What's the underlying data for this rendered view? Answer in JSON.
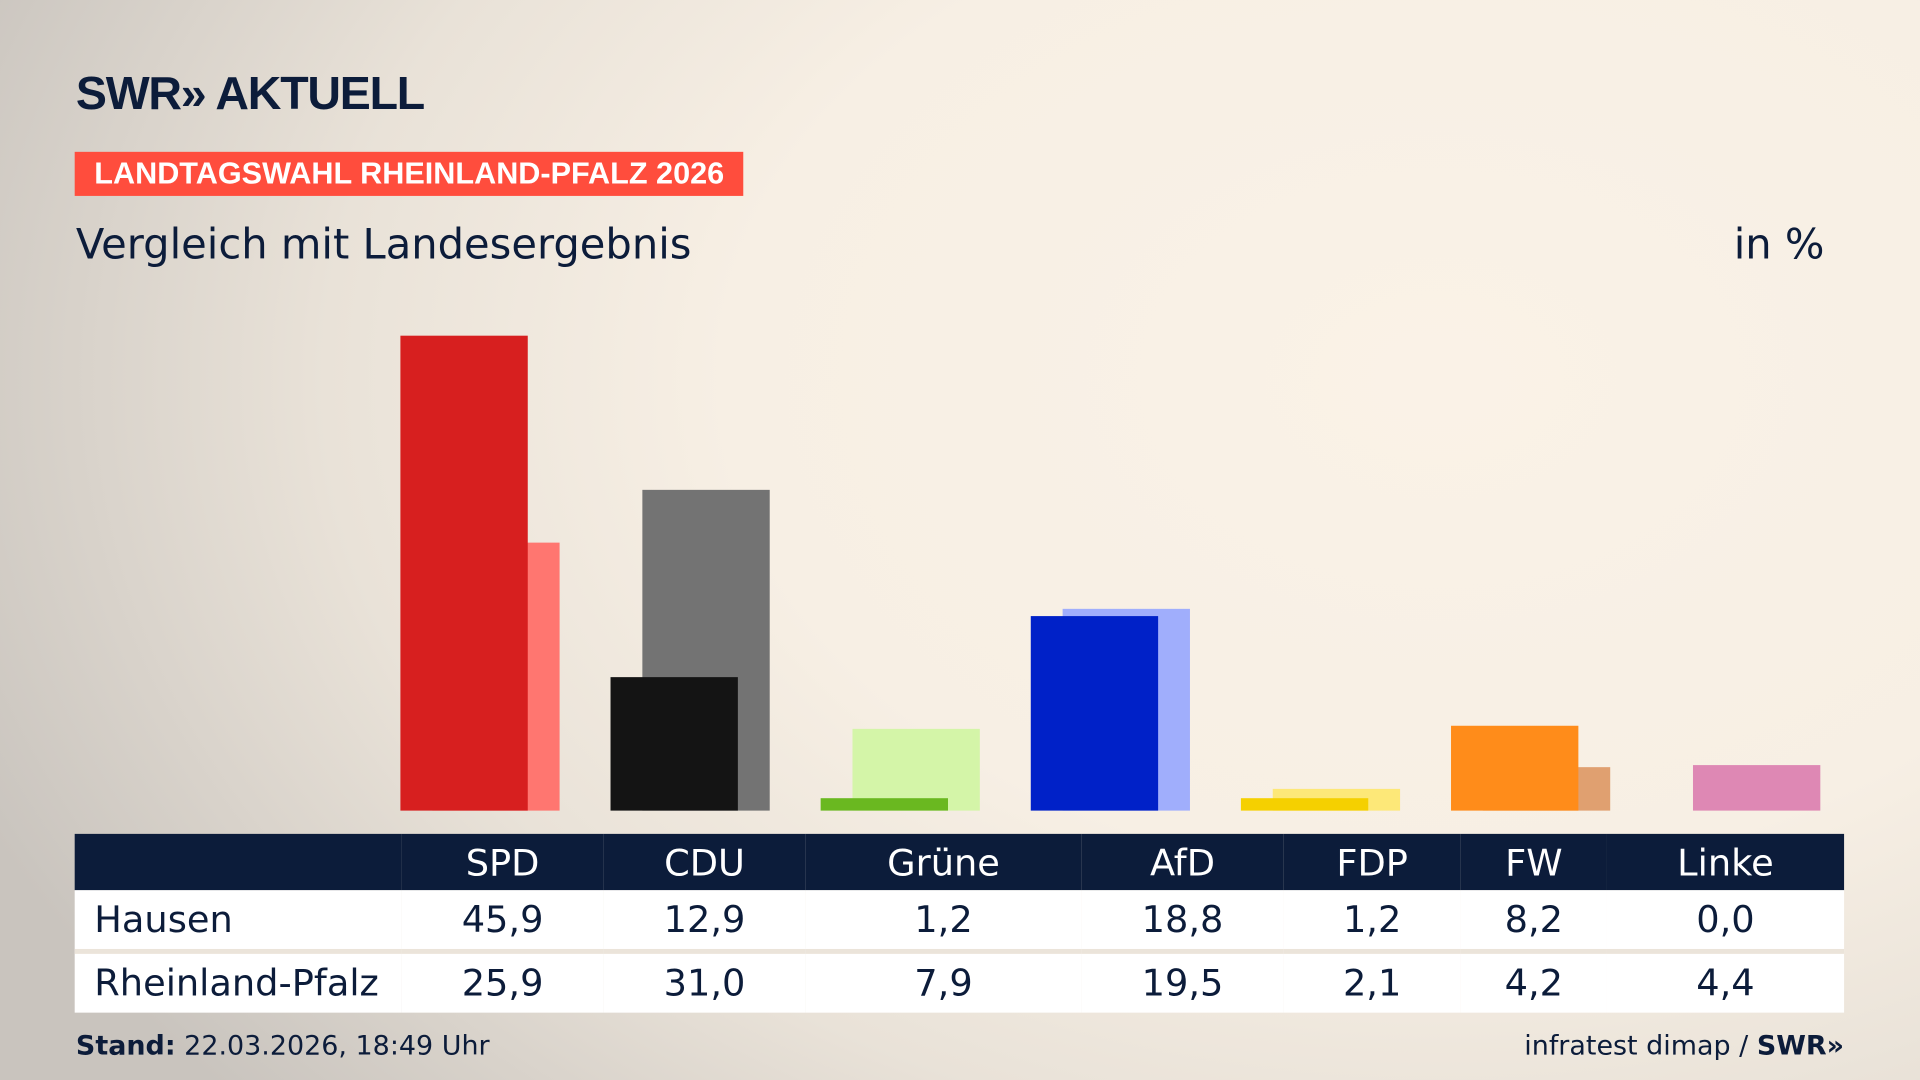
{
  "header": {
    "logo": "SWR» AKTUELL",
    "badge": "LANDTAGSWAHL RHEINLAND-PFALZ 2026",
    "subtitle": "Vergleich mit Landesergebnis",
    "unit": "in %"
  },
  "chart_data": {
    "type": "bar",
    "categories": [
      "SPD",
      "CDU",
      "Grüne",
      "AfD",
      "FDP",
      "FW",
      "Linke"
    ],
    "series": [
      {
        "name": "Hausen",
        "values": [
          45.9,
          12.9,
          1.2,
          18.8,
          1.2,
          8.2,
          0.0
        ],
        "colors": [
          "#d71f1f",
          "#141414",
          "#6ab820",
          "#0021c8",
          "#f5d000",
          "#ff8c1a",
          "#c8579a"
        ]
      },
      {
        "name": "Rheinland-Pfalz",
        "values": [
          25.9,
          31.0,
          7.9,
          19.5,
          2.1,
          4.2,
          4.4
        ],
        "colors": [
          "#ff7670",
          "#737373",
          "#d4f5a8",
          "#a0aefc",
          "#fde878",
          "#e0a070",
          "#de88b4"
        ]
      }
    ],
    "display_values": [
      [
        "45,9",
        "12,9",
        "1,2",
        "18,8",
        "1,2",
        "8,2",
        "0,0"
      ],
      [
        "25,9",
        "31,0",
        "7,9",
        "19,5",
        "2,1",
        "4,2",
        "4,4"
      ]
    ]
  },
  "footer": {
    "stand_label": "Stand:",
    "stand_value": " 22.03.2026, 18:49 Uhr",
    "source": "infratest dimap / ",
    "source_logo": "SWR»"
  }
}
